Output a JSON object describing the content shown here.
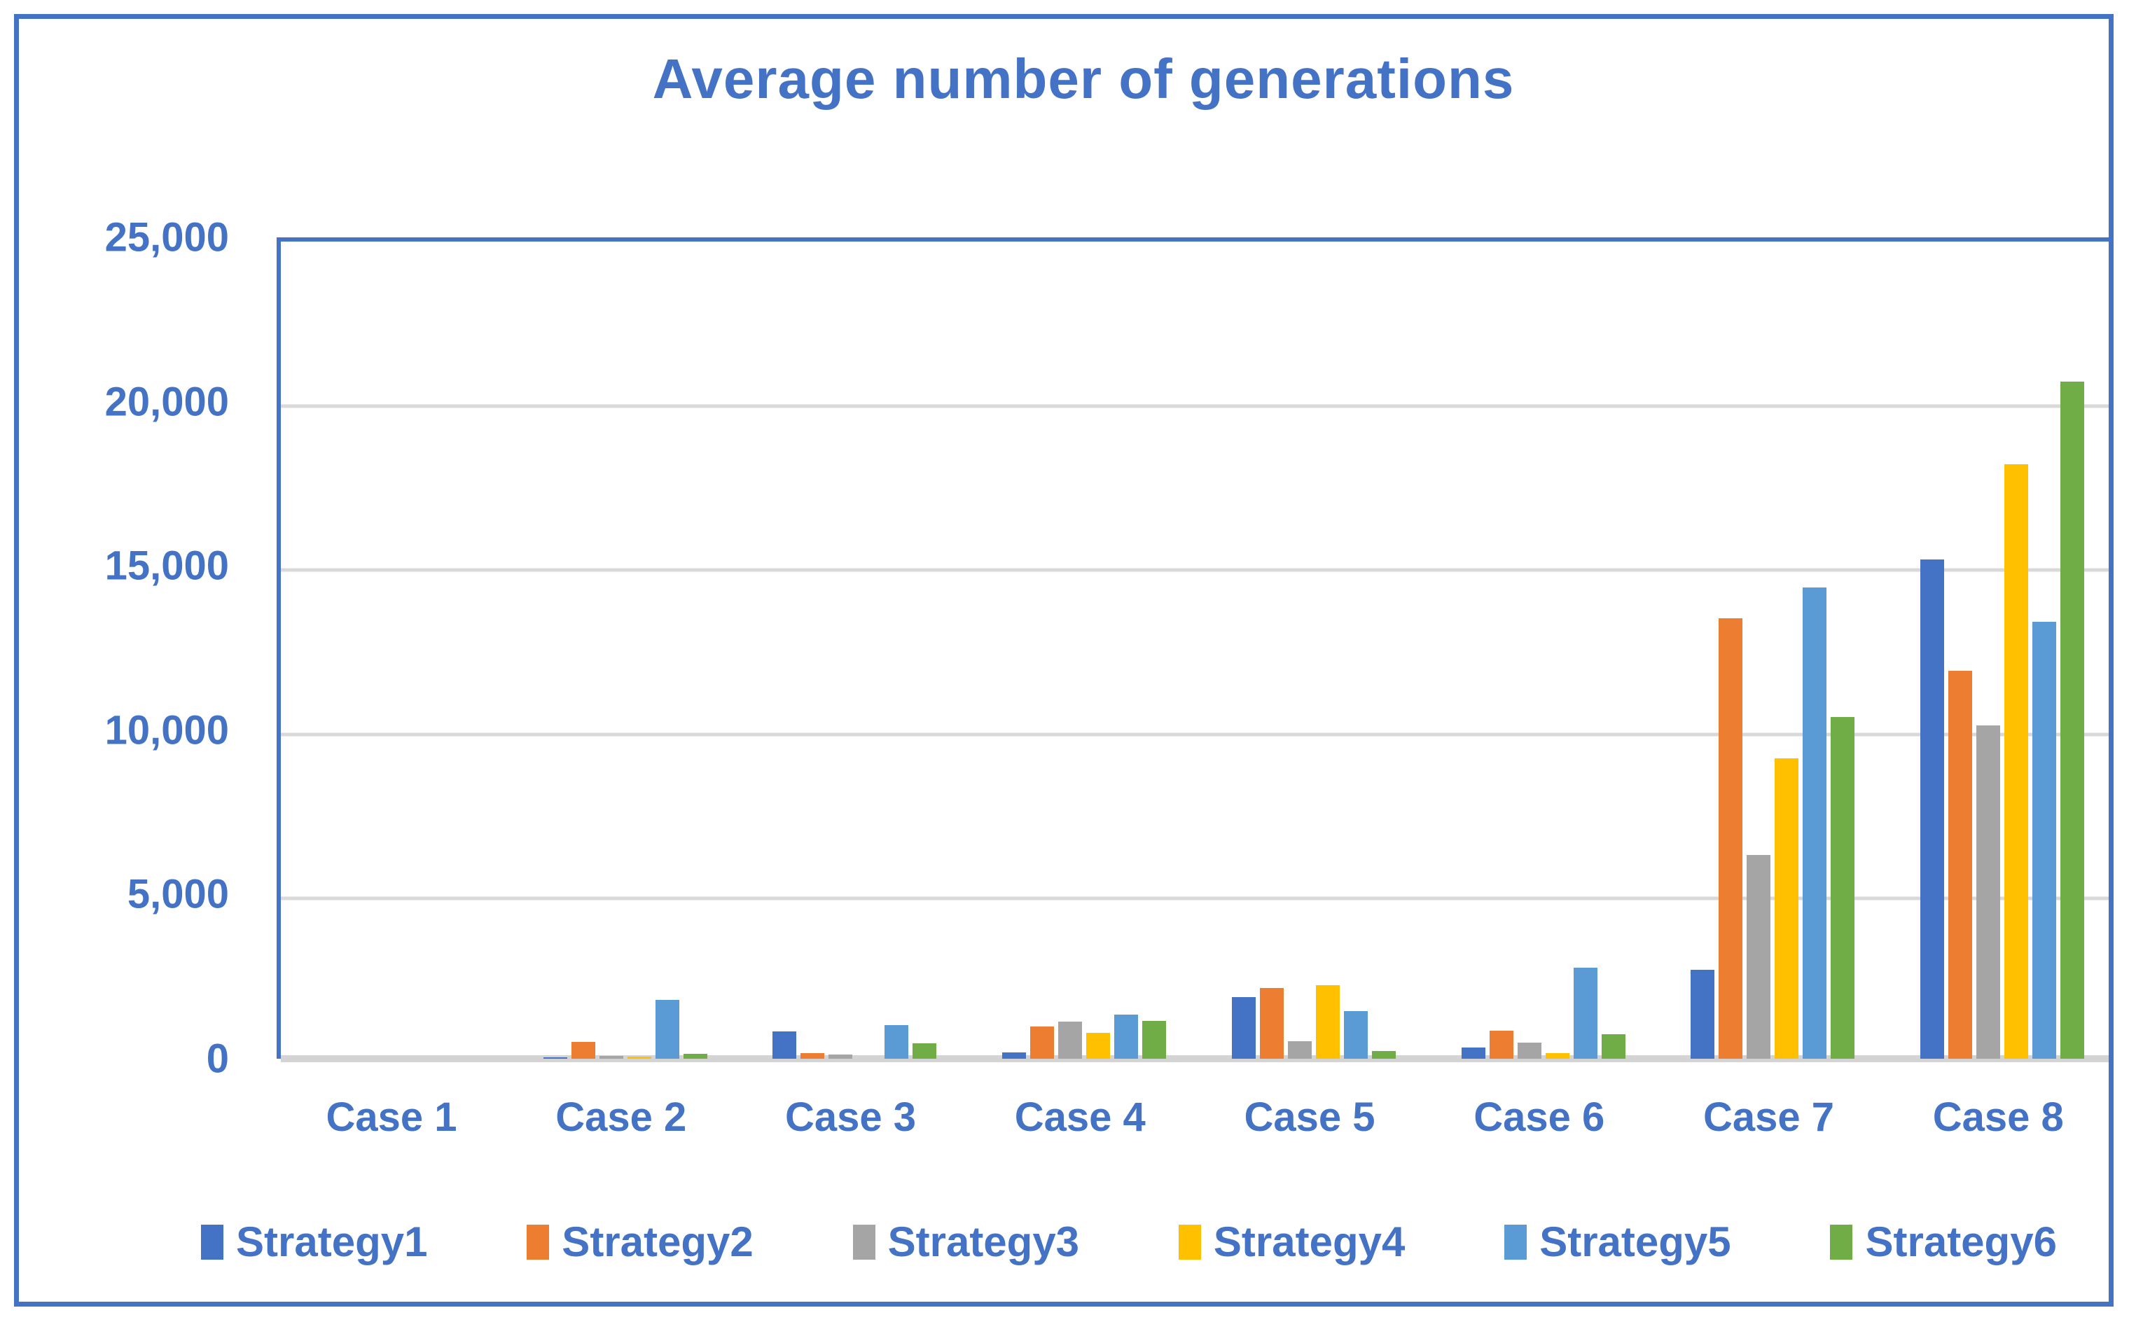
{
  "title": "Average number of generations",
  "colors": {
    "accent_blue": "#4472C4",
    "gridline": "#D9D9D9",
    "axis_line": "#D4D4D4",
    "background": "#FFFFFF"
  },
  "chart_data": {
    "type": "bar",
    "title": "Average number of generations",
    "categories": [
      "Case 1",
      "Case 2",
      "Case 3",
      "Case 4",
      "Case 5",
      "Case 6",
      "Case 7",
      "Case 8"
    ],
    "series": [
      {
        "name": "Strategy1",
        "color": "#4472C4",
        "values": [
          0,
          50,
          830,
          190,
          1870,
          350,
          2700,
          15200
        ]
      },
      {
        "name": "Strategy2",
        "color": "#ED7D31",
        "values": [
          0,
          520,
          160,
          980,
          2150,
          860,
          13400,
          11800
        ]
      },
      {
        "name": "Strategy3",
        "color": "#A5A5A5",
        "values": [
          0,
          80,
          120,
          1130,
          540,
          490,
          6200,
          10150
        ]
      },
      {
        "name": "Strategy4",
        "color": "#FFC000",
        "values": [
          0,
          60,
          0,
          790,
          2240,
          170,
          9150,
          18100
        ]
      },
      {
        "name": "Strategy5",
        "color": "#5B9BD5",
        "values": [
          0,
          1800,
          1020,
          1350,
          1440,
          2780,
          14350,
          13300
        ]
      },
      {
        "name": "Strategy6",
        "color": "#70AD47",
        "values": [
          0,
          140,
          470,
          1150,
          230,
          740,
          10400,
          20600
        ]
      }
    ],
    "xlabel": "",
    "ylabel": "",
    "ylim": [
      0,
      25000
    ],
    "ytick_step": 5000,
    "ytick_labels": [
      "0",
      "5,000",
      "10,000",
      "15,000",
      "20,000",
      "25,000"
    ],
    "grid": true,
    "legend_position": "bottom"
  }
}
